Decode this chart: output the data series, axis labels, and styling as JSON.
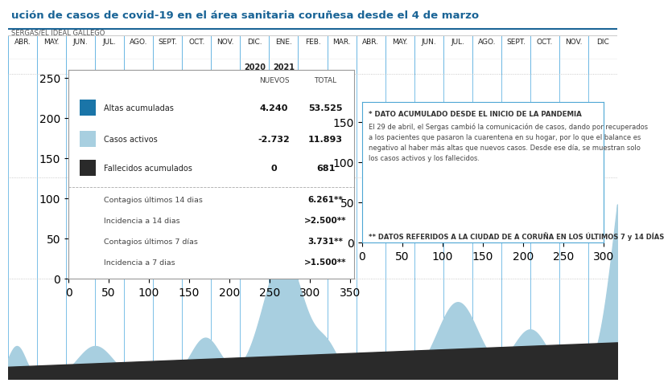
{
  "title": "ución de casos de covid-19 en el área sanitaria coruñesa desde el 4 de marzo",
  "subtitle": "SERGAS/EL IDEAL GALLEGO",
  "bg_color": "#ffffff",
  "title_color": "#1a6496",
  "months_row1": [
    "ABR.",
    "MAY.",
    "JUN.",
    "JUL.",
    "AGO.",
    "SEPT.",
    "OCT.",
    "NOV.",
    "DIC.",
    "ENE.",
    "FEB.",
    "MAR.",
    "ABR.",
    "MAY.",
    "JUN.",
    "JUL.",
    "AGO.",
    "SEPT.",
    "OCT.",
    "NOV.",
    "DIC"
  ],
  "year2020_idx": 8,
  "year2021_idx": 9,
  "legend_items": [
    {
      "label": "Altas acumuladas",
      "color": "#1a75a8",
      "nuevos": "4.240",
      "total": "53.525"
    },
    {
      "label": "Casos activos",
      "color": "#a8cfe0",
      "nuevos": "-2.732",
      "total": "11.893"
    },
    {
      "label": "Fallecidos acumulados",
      "color": "#2a2a2a",
      "nuevos": "0",
      "total": "681"
    }
  ],
  "extra_stats": [
    {
      "label": "Contagios últimos 14 dias",
      "value": "6.261**"
    },
    {
      "label": "Incidencia a 14 dias",
      "value": ">2.500**"
    },
    {
      "label": "Contagios últimos 7 días",
      "value": "3.731**"
    },
    {
      "label": "Incidencia a 7 dias",
      "value": ">1.500**"
    }
  ],
  "note_title": "* DATO ACUMULADO DESDE EL INICIO DE LA PANDEMIA",
  "note_body": [
    "El 29 de abril, el Sergas cambió la comunicación de casos, dando por recuperados",
    "a los pacientes que pasaron la cuarentena en su hogar, por lo que el balance es",
    "negativo al haber más altas que nuevos casos. Desde ese día, se muestran solo",
    "los casos activos y los fallecidos."
  ],
  "note_footer": "** DATOS REFERIDOS A LA CIUDAD DE A CORUÑA EN LOS ÚLTIMOS 7 y 14 DÍAS",
  "dark_blue": "#1a75a8",
  "light_blue": "#a8cfe0",
  "black_area": "#2a2a2a",
  "grid_color": "#5aafe0",
  "dot_line_color": "#bbbbbb",
  "chart_bg": "#ffffff"
}
